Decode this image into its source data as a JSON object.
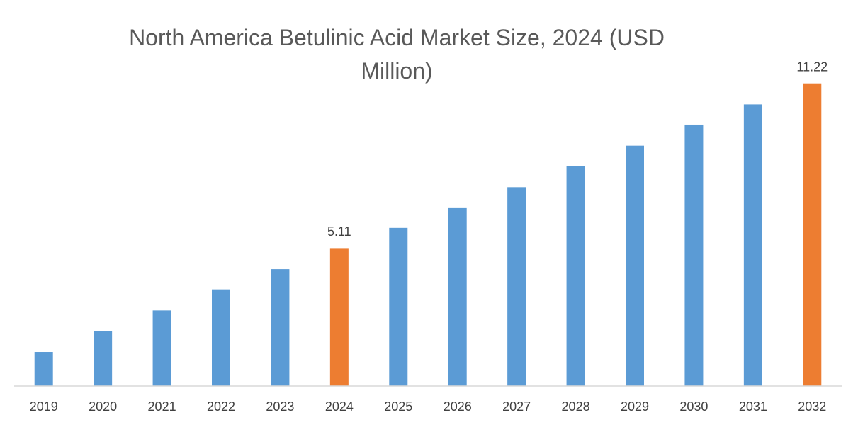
{
  "chart_data": {
    "type": "bar",
    "title": "North America Betulinic Acid Market Size, 2024 (USD Million)",
    "categories": [
      "2019",
      "2020",
      "2021",
      "2022",
      "2023",
      "2024",
      "2025",
      "2026",
      "2027",
      "2028",
      "2029",
      "2030",
      "2031",
      "2032"
    ],
    "values": [
      1.26,
      2.04,
      2.8,
      3.58,
      4.33,
      5.11,
      5.86,
      6.62,
      7.37,
      8.15,
      8.91,
      9.69,
      10.44,
      11.22
    ],
    "colors": [
      "#5b9bd5",
      "#5b9bd5",
      "#5b9bd5",
      "#5b9bd5",
      "#5b9bd5",
      "#ed7d31",
      "#5b9bd5",
      "#5b9bd5",
      "#5b9bd5",
      "#5b9bd5",
      "#5b9bd5",
      "#5b9bd5",
      "#5b9bd5",
      "#ed7d31"
    ],
    "value_labels": [
      null,
      null,
      null,
      null,
      null,
      "5.11",
      null,
      null,
      null,
      null,
      null,
      null,
      null,
      "11.22"
    ],
    "ylim": [
      0,
      12
    ]
  }
}
